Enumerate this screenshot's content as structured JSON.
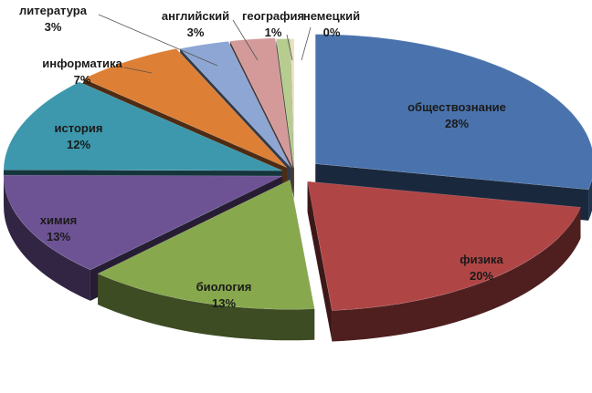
{
  "chart_data": {
    "type": "pie",
    "variant": "3d-exploded",
    "title": "",
    "start": "12 o'clock, clockwise",
    "slices": [
      {
        "name": "обществознание",
        "label": "28%",
        "value": 28.2,
        "color": "#4a73ad"
      },
      {
        "name": "физика",
        "label": "20%",
        "value": 20.4,
        "color": "#b04545"
      },
      {
        "name": "биология",
        "label": "13%",
        "value": 13.5,
        "color": "#87a84d"
      },
      {
        "name": "химия",
        "label": "13%",
        "value": 13.0,
        "color": "#6d5394"
      },
      {
        "name": "история",
        "label": "12%",
        "value": 11.9,
        "color": "#3d98ad"
      },
      {
        "name": "информатика",
        "label": "7%",
        "value": 6.5,
        "color": "#dd7f35"
      },
      {
        "name": "литература",
        "label": "3%",
        "value": 2.9,
        "color": "#8da6d4"
      },
      {
        "name": "английский",
        "label": "3%",
        "value": 2.6,
        "color": "#d49a9a"
      },
      {
        "name": "география",
        "label": "1%",
        "value": 0.8,
        "color": "#b7cc8f"
      },
      {
        "name": "немецкий",
        "label": "0%",
        "value": 0.2,
        "color": "#ece1c0"
      }
    ]
  }
}
